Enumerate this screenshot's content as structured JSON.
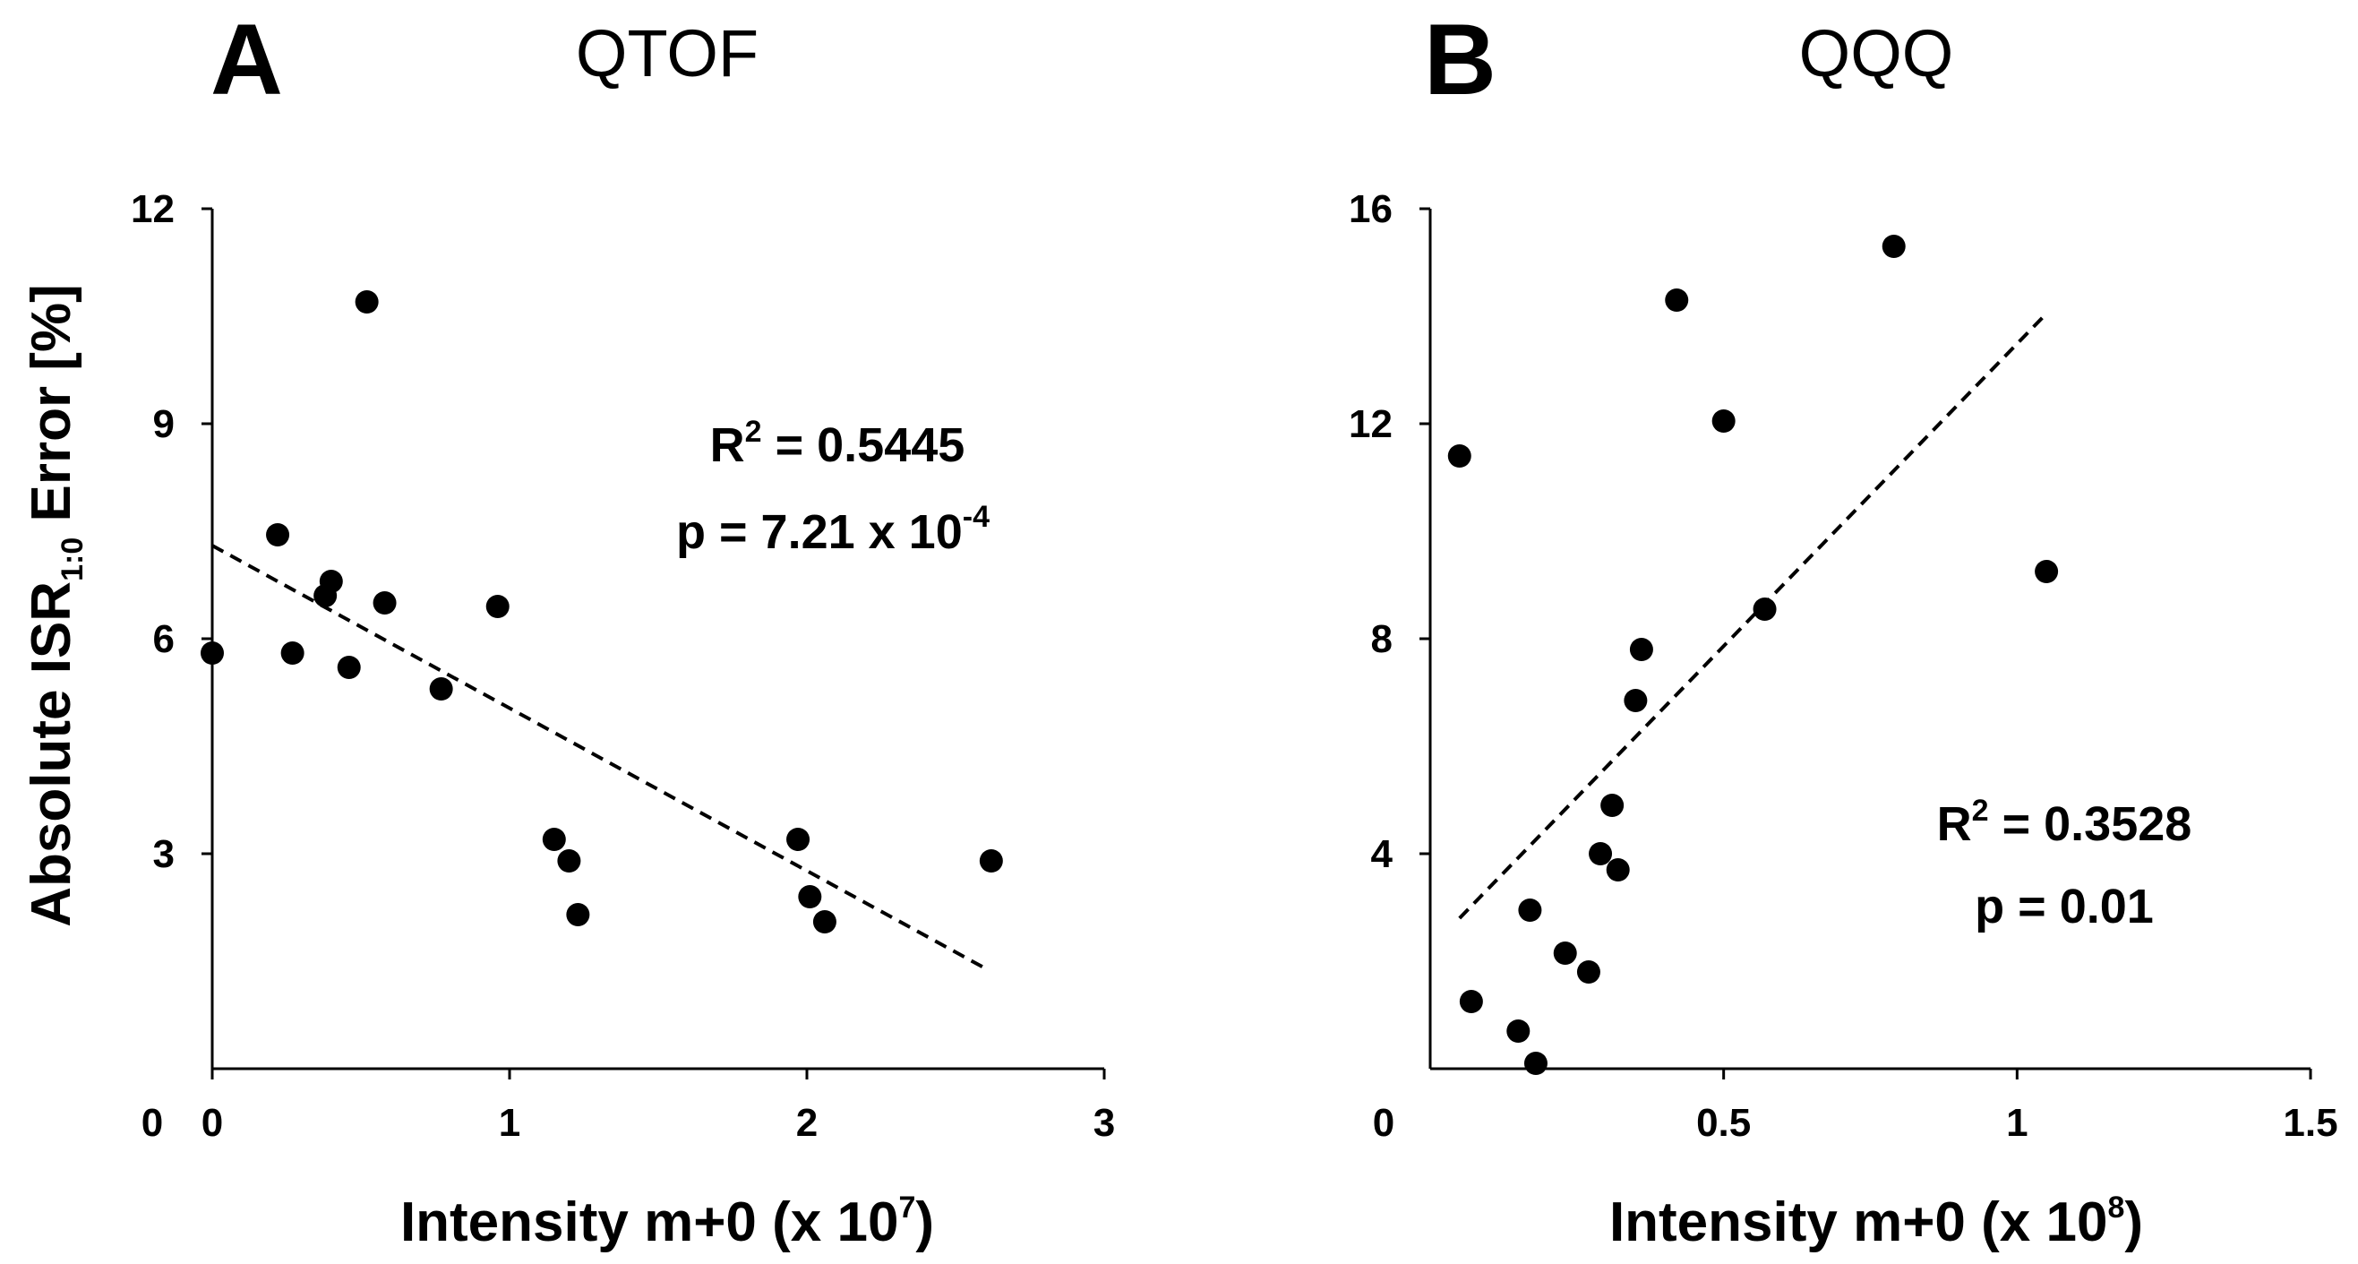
{
  "y_axis_label": {
    "main": "Absolute ISR",
    "sub": "1:0",
    "tail": " Error [%]"
  },
  "chart_data": [
    {
      "type": "scatter",
      "panel_letter": "A",
      "title": "QTOF",
      "xlabel": {
        "main": "Intensity m+0 (x 10",
        "sup": "7",
        "tail": ")"
      },
      "ylabel": "Absolute ISR1:0 Error [%]",
      "xlim": [
        0,
        3
      ],
      "ylim": [
        0,
        12
      ],
      "x_ticks": [
        0,
        1,
        2,
        3
      ],
      "x_tick_labels": [
        "0",
        "1",
        "2",
        "3"
      ],
      "y_ticks": [
        3,
        6,
        9,
        12
      ],
      "y_tick_labels": [
        "3",
        "6",
        "9",
        "12"
      ],
      "origin_label": "0",
      "points": [
        [
          0.0,
          5.8
        ],
        [
          0.22,
          7.45
        ],
        [
          0.27,
          5.8
        ],
        [
          0.38,
          6.6
        ],
        [
          0.4,
          6.8
        ],
        [
          0.46,
          5.6
        ],
        [
          0.52,
          10.7
        ],
        [
          0.58,
          6.5
        ],
        [
          0.77,
          5.3
        ],
        [
          0.96,
          6.45
        ],
        [
          1.15,
          3.2
        ],
        [
          1.2,
          2.9
        ],
        [
          1.23,
          2.15
        ],
        [
          1.97,
          3.2
        ],
        [
          2.01,
          2.4
        ],
        [
          2.06,
          2.05
        ],
        [
          2.62,
          2.9
        ]
      ],
      "trendline": {
        "x": [
          0.0,
          2.6
        ],
        "y": [
          7.3,
          1.4
        ],
        "style": "dashed"
      },
      "annotation": {
        "r2_prefix": "R",
        "r2_sup": "2",
        "r2_value": " = 0.5445",
        "p_main": "p = 7.21 x 10",
        "p_sup": "-4"
      }
    },
    {
      "type": "scatter",
      "panel_letter": "B",
      "title": "QQQ",
      "xlabel": {
        "main": "Intensity m+0 (x 10",
        "sup": "8",
        "tail": ")"
      },
      "ylabel": "Absolute ISR1:0 Error [%]",
      "xlim": [
        0,
        1.5
      ],
      "ylim": [
        0,
        16
      ],
      "x_ticks": [
        0.5,
        1,
        1.5
      ],
      "x_tick_labels": [
        "0.5",
        "1",
        "1.5"
      ],
      "y_ticks": [
        4,
        8,
        12,
        16
      ],
      "y_tick_labels": [
        "4",
        "8",
        "12",
        "16"
      ],
      "origin_label": "0",
      "points": [
        [
          0.05,
          11.4
        ],
        [
          0.07,
          1.25
        ],
        [
          0.15,
          0.7
        ],
        [
          0.17,
          2.95
        ],
        [
          0.18,
          0.1
        ],
        [
          0.23,
          2.15
        ],
        [
          0.27,
          1.8
        ],
        [
          0.29,
          4.0
        ],
        [
          0.31,
          4.9
        ],
        [
          0.32,
          3.7
        ],
        [
          0.35,
          6.85
        ],
        [
          0.36,
          7.8
        ],
        [
          0.42,
          14.3
        ],
        [
          0.5,
          12.05
        ],
        [
          0.57,
          8.55
        ],
        [
          0.79,
          15.3
        ],
        [
          1.05,
          9.25
        ]
      ],
      "trendline": {
        "x": [
          0.05,
          1.05
        ],
        "y": [
          2.8,
          14.05
        ],
        "style": "dashed"
      },
      "annotation": {
        "r2_prefix": "R",
        "r2_sup": "2",
        "r2_value": " = 0.3528",
        "p_main": "p = 0.01",
        "p_sup": ""
      }
    }
  ]
}
